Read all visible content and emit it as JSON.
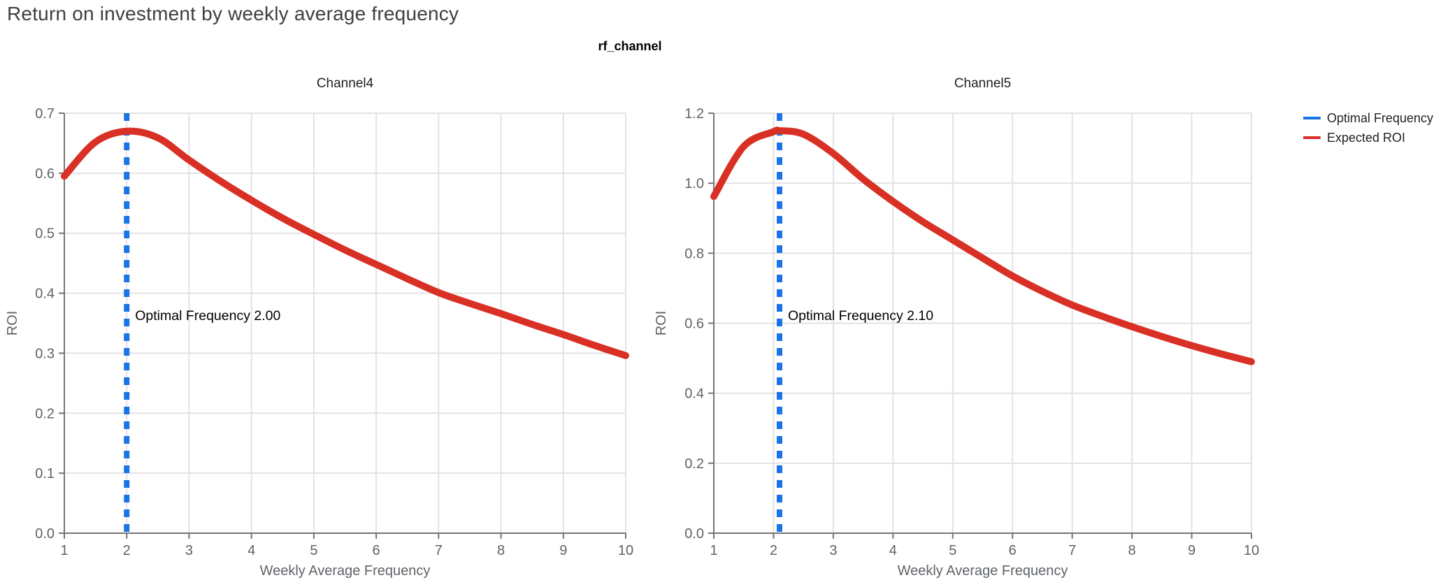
{
  "page": {
    "title": "Return on investment by weekly average frequency"
  },
  "facet": {
    "title": "rf_channel"
  },
  "legend": {
    "position": "top-right",
    "items": [
      {
        "label": "Optimal Frequency",
        "color": "#1a73e8",
        "swatch": "line"
      },
      {
        "label": "Expected ROI",
        "color": "#d93025",
        "swatch": "line"
      }
    ]
  },
  "colors": {
    "expected_roi_line": "#d93025",
    "optimal_frequency_rule": "#1a73e8",
    "gridline": "#e3e3e5",
    "axis_domain": "#757575",
    "tick_label": "#5f6368",
    "axis_title": "#5f6368",
    "chart_title": "#1f1f1f",
    "annotation_text": "#000000",
    "page_title": "#3c4043",
    "background": "#ffffff"
  },
  "chart_data": [
    {
      "type": "line",
      "title": "Channel4",
      "xlabel": "Weekly Average Frequency",
      "ylabel": "ROI",
      "xlim": [
        1,
        10
      ],
      "ylim": [
        0.0,
        0.7
      ],
      "grid": true,
      "xticks": [
        1,
        2,
        3,
        4,
        5,
        6,
        7,
        8,
        9,
        10
      ],
      "xtick_labels": [
        "1",
        "2",
        "3",
        "4",
        "5",
        "6",
        "7",
        "8",
        "9",
        "10"
      ],
      "ytick_values": [
        0.0,
        0.1,
        0.2,
        0.3,
        0.4,
        0.5,
        0.6,
        0.7
      ],
      "ytick_labels": [
        "0.0",
        "0.1",
        "0.2",
        "0.3",
        "0.4",
        "0.5",
        "0.6",
        "0.7"
      ],
      "optimal_frequency": 2.0,
      "annotation": "Optimal Frequency  2.00",
      "rule": {
        "name": "Optimal Frequency",
        "x": 2.0
      },
      "series": [
        {
          "name": "Expected ROI",
          "x": [
            1,
            1.5,
            2,
            2.5,
            3,
            3.5,
            4,
            4.5,
            5,
            5.5,
            6,
            6.5,
            7,
            7.5,
            8,
            8.5,
            9,
            9.5,
            10
          ],
          "y": [
            0.595,
            0.652,
            0.67,
            0.659,
            0.622,
            0.587,
            0.555,
            0.525,
            0.498,
            0.472,
            0.448,
            0.424,
            0.401,
            0.383,
            0.366,
            0.348,
            0.331,
            0.313,
            0.296
          ]
        }
      ]
    },
    {
      "type": "line",
      "title": "Channel5",
      "xlabel": "Weekly Average Frequency",
      "ylabel": "ROI",
      "xlim": [
        1,
        10
      ],
      "ylim": [
        0.0,
        1.2
      ],
      "grid": true,
      "xticks": [
        1,
        2,
        3,
        4,
        5,
        6,
        7,
        8,
        9,
        10
      ],
      "xtick_labels": [
        "1",
        "2",
        "3",
        "4",
        "5",
        "6",
        "7",
        "8",
        "9",
        "10"
      ],
      "ytick_values": [
        0.0,
        0.2,
        0.4,
        0.6,
        0.8,
        1.0,
        1.2
      ],
      "ytick_labels": [
        "0.0",
        "0.2",
        "0.4",
        "0.6",
        "0.8",
        "1.0",
        "1.2"
      ],
      "optimal_frequency": 2.1,
      "annotation": "Optimal Frequency  2.10",
      "rule": {
        "name": "Optimal Frequency",
        "x": 2.1
      },
      "series": [
        {
          "name": "Expected ROI",
          "x": [
            1,
            1.5,
            2,
            2.1,
            2.5,
            3,
            3.5,
            4,
            4.5,
            5,
            5.5,
            6,
            6.5,
            7,
            7.5,
            8,
            8.5,
            9,
            9.5,
            10
          ],
          "y": [
            0.962,
            1.105,
            1.147,
            1.15,
            1.14,
            1.085,
            1.012,
            0.948,
            0.89,
            0.838,
            0.786,
            0.735,
            0.691,
            0.652,
            0.62,
            0.59,
            0.562,
            0.536,
            0.512,
            0.49
          ]
        }
      ]
    }
  ]
}
